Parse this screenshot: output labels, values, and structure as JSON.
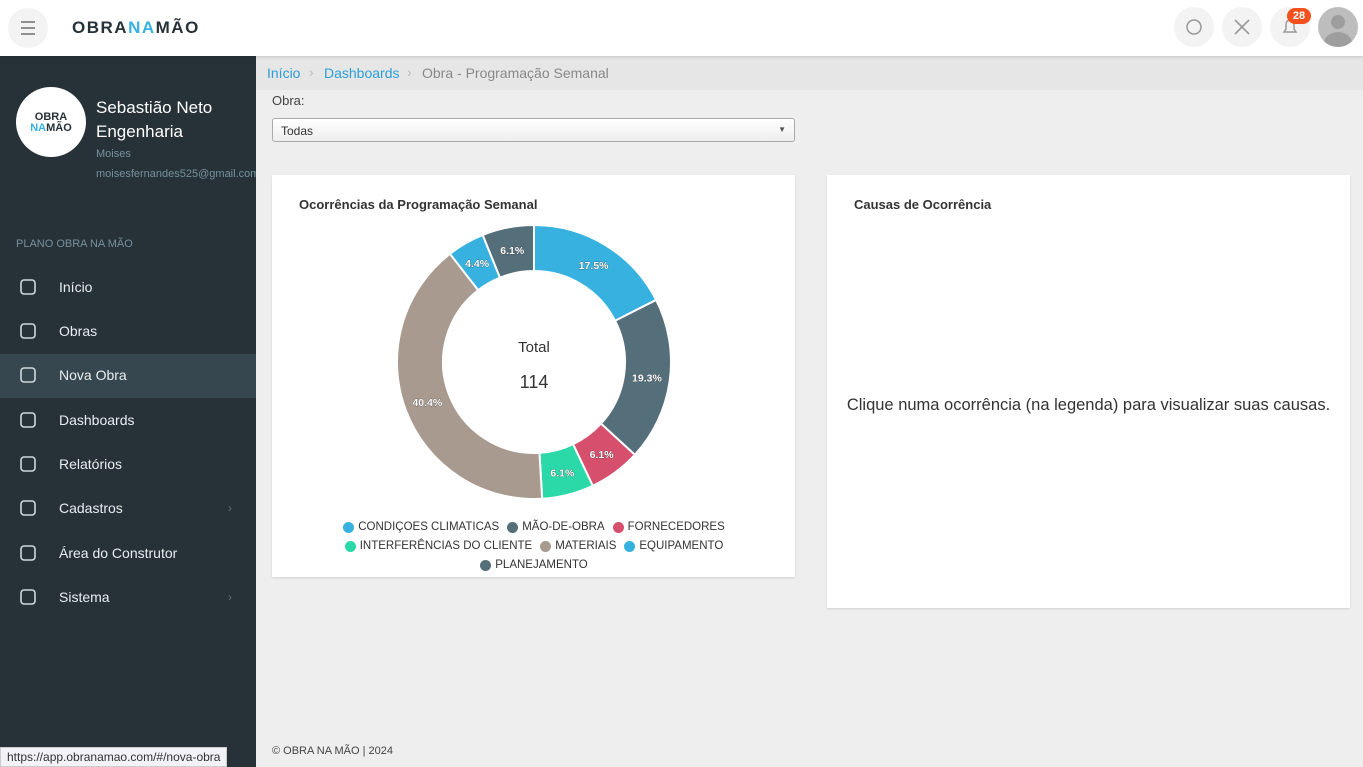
{
  "header": {
    "brand_parts": [
      "OBRA",
      "NA",
      "MÃO"
    ],
    "notification_count": 28
  },
  "sidebar": {
    "logo_line1": "OBRA",
    "logo_line2a": "NA",
    "logo_line2b": "MÃO",
    "company": "Sebastião Neto Engenharia",
    "user": "Moises",
    "email": "moisesfernandes525@gmail.com",
    "section": "PLANO OBRA NA MÃO",
    "menu": [
      "Início",
      "Obras",
      "Nova Obra",
      "Dashboards",
      "Relatórios",
      "Cadastros",
      "Área do Construtor",
      "Sistema"
    ]
  },
  "breadcrumb": [
    "Início",
    "Dashboards",
    "Obra - Programação Semanal"
  ],
  "filter": {
    "label": "Obra:",
    "value": "Todas"
  },
  "chart_data": {
    "type": "donut",
    "title": "Ocorrências da Programação Semanal",
    "center_label": "Total",
    "center_value": 114,
    "categories": [
      "CONDIÇOES CLIMATICAS",
      "MÃO-DE-OBRA",
      "FORNECEDORES",
      "INTERFERÊNCIAS DO CLIENTE",
      "MATERIAIS",
      "EQUIPAMENTO",
      "PLANEJAMENTO"
    ],
    "values": [
      17.5,
      19.3,
      6.1,
      6.1,
      40.4,
      4.4,
      6.1
    ],
    "value_labels": [
      "17.5%",
      "19.3%",
      "6.1%",
      "6.1%",
      "40.4%",
      "4.4%",
      "6.1%"
    ],
    "colors": [
      "#36b1e0",
      "#546e7a",
      "#d6506e",
      "#2bd9a8",
      "#a89a8e",
      "#36b1e0",
      "#546e7a"
    ]
  },
  "causes_card": {
    "title": "Causas de Ocorrência",
    "message": "Clique numa ocorrência (na legenda) para visualizar suas causas."
  },
  "footer": "© OBRA NA MÃO | 2024",
  "status_url": "https://app.obranamao.com/#/nova-obra"
}
